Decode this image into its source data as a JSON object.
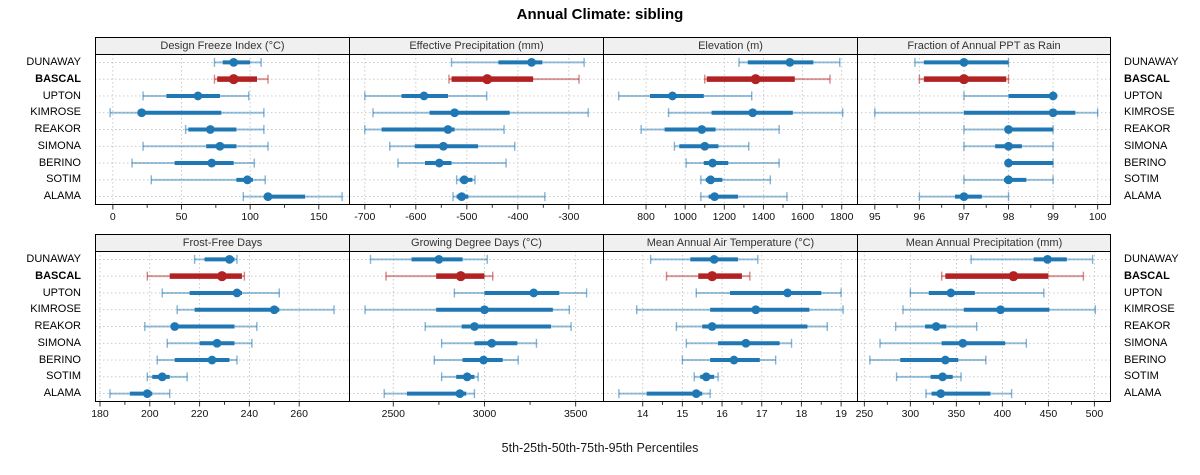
{
  "title": "Annual Climate: sibling",
  "footer_label": "5th-25th-50th-75th-95th Percentiles",
  "highlight_site": "BASCAL",
  "colors": {
    "series": "#1f77b4",
    "highlight": "#b22222",
    "panel_header_bg": "#f0f0f0",
    "panel_border": "#000000",
    "grid": "#c4c4c4",
    "tick": "#333333",
    "text": "#1a1a1a"
  },
  "chart_data": {
    "type": "dot-interval trellis (5th-25th-50th-75th-95th percentile plot)",
    "rows": [
      "DUNAWAY",
      "BASCAL",
      "UPTON",
      "KIMROSE",
      "REAKOR",
      "SIMONA",
      "BERINO",
      "SOTIM",
      "ALAMA"
    ],
    "percentiles": [
      "5th",
      "25th",
      "50th",
      "75th",
      "95th"
    ],
    "grid": "dotted",
    "panels": [
      {
        "title": "Design Freeze Index (°C)",
        "side": "top",
        "xlim": [
          -13,
          172
        ],
        "ticks": [
          0,
          50,
          100,
          150
        ],
        "series": {
          "DUNAWAY": [
            74,
            80,
            88,
            100,
            108
          ],
          "BASCAL": [
            74,
            76,
            88,
            105,
            113
          ],
          "UPTON": [
            22,
            39,
            62,
            78,
            99
          ],
          "KIMROSE": [
            -2,
            18,
            21,
            79,
            110
          ],
          "REAKOR": [
            53,
            55,
            71,
            90,
            110
          ],
          "SIMONA": [
            22,
            68,
            78,
            90,
            113
          ],
          "BERINO": [
            14,
            45,
            72,
            88,
            103
          ],
          "SOTIM": [
            28,
            90,
            98,
            102,
            111
          ],
          "ALAMA": [
            95,
            110,
            113,
            140,
            167
          ]
        }
      },
      {
        "title": "Effective Precipitation (mm)",
        "side": "top",
        "xlim": [
          -731,
          -233
        ],
        "ticks": [
          -700,
          -600,
          -500,
          -400,
          -300
        ],
        "series": {
          "DUNAWAY": [
            -530,
            -438,
            -373,
            -352,
            -270
          ],
          "BASCAL": [
            -535,
            -530,
            -460,
            -370,
            -280
          ],
          "UPTON": [
            -700,
            -628,
            -584,
            -537,
            -461
          ],
          "KIMROSE": [
            -684,
            -573,
            -524,
            -416,
            -262
          ],
          "REAKOR": [
            -700,
            -667,
            -537,
            -524,
            -427
          ],
          "SIMONA": [
            -651,
            -602,
            -546,
            -478,
            -406
          ],
          "BERINO": [
            -635,
            -582,
            -554,
            -530,
            -423
          ],
          "SOTIM": [
            -520,
            -514,
            -505,
            -489,
            -484
          ],
          "ALAMA": [
            -527,
            -520,
            -510,
            -497,
            -347
          ]
        }
      },
      {
        "title": "Elevation (m)",
        "side": "top",
        "xlim": [
          580,
          1878
        ],
        "ticks": [
          800,
          1000,
          1200,
          1400,
          1600,
          1800
        ],
        "series": {
          "DUNAWAY": [
            1275,
            1320,
            1535,
            1655,
            1790
          ],
          "BASCAL": [
            1100,
            1110,
            1360,
            1560,
            1740
          ],
          "UPTON": [
            660,
            820,
            935,
            1095,
            1340
          ],
          "KIMROSE": [
            915,
            1135,
            1345,
            1550,
            1805
          ],
          "REAKOR": [
            775,
            895,
            1085,
            1155,
            1480
          ],
          "SIMONA": [
            945,
            970,
            1100,
            1170,
            1325
          ],
          "BERINO": [
            1005,
            1095,
            1140,
            1220,
            1480
          ],
          "SOTIM": [
            1080,
            1105,
            1130,
            1190,
            1435
          ],
          "ALAMA": [
            1080,
            1120,
            1150,
            1270,
            1520
          ]
        }
      },
      {
        "title": "Fraction of Annual PPT as Rain",
        "side": "top",
        "xlim": [
          94.6,
          100.3
        ],
        "ticks": [
          95,
          96,
          97,
          98,
          99,
          100
        ],
        "series": {
          "DUNAWAY": [
            95.9,
            96.1,
            97,
            98,
            98
          ],
          "BASCAL": [
            96,
            96.1,
            97,
            97.95,
            98
          ],
          "UPTON": [
            97,
            98,
            99,
            99,
            99
          ],
          "KIMROSE": [
            95,
            97,
            99,
            99.5,
            100
          ],
          "REAKOR": [
            97,
            98,
            98,
            99,
            99
          ],
          "SIMONA": [
            97,
            97.7,
            98,
            98.3,
            99
          ],
          "BERINO": [
            98,
            98,
            98,
            99,
            99
          ],
          "SOTIM": [
            97,
            97.9,
            98,
            98.4,
            99
          ],
          "ALAMA": [
            96,
            96.8,
            97,
            97.4,
            98
          ]
        }
      },
      {
        "title": "Frost-Free Days",
        "side": "bottom",
        "xlim": [
          178,
          280
        ],
        "ticks": [
          180,
          200,
          220,
          240,
          260
        ],
        "series": {
          "DUNAWAY": [
            218,
            222,
            232,
            234,
            235
          ],
          "BASCAL": [
            199,
            208,
            229,
            237,
            238
          ],
          "UPTON": [
            205,
            216,
            235,
            237,
            252
          ],
          "KIMROSE": [
            211,
            218,
            250,
            252,
            274
          ],
          "REAKOR": [
            198,
            209,
            210,
            234,
            243
          ],
          "SIMONA": [
            207,
            220,
            227,
            234,
            241
          ],
          "BERINO": [
            203,
            210,
            225,
            232,
            235
          ],
          "SOTIM": [
            199,
            201,
            205,
            208,
            215
          ],
          "ALAMA": [
            184,
            192,
            199,
            201,
            208
          ]
        }
      },
      {
        "title": "Growing Degree Days (°C)",
        "side": "bottom",
        "xlim": [
          2257,
          3650
        ],
        "ticks": [
          2500,
          3000,
          3500
        ],
        "series": {
          "DUNAWAY": [
            2375,
            2600,
            2750,
            2880,
            3015
          ],
          "BASCAL": [
            2460,
            2735,
            2870,
            3000,
            3045
          ],
          "UPTON": [
            2835,
            3000,
            3270,
            3410,
            3560
          ],
          "KIMROSE": [
            2345,
            2735,
            3000,
            3375,
            3465
          ],
          "REAKOR": [
            2675,
            2875,
            2945,
            3365,
            3475
          ],
          "SIMONA": [
            2765,
            2945,
            3040,
            3180,
            3285
          ],
          "BERINO": [
            2725,
            2880,
            2995,
            3100,
            3185
          ],
          "SOTIM": [
            2765,
            2845,
            2905,
            2945,
            2965
          ],
          "ALAMA": [
            2450,
            2575,
            2865,
            2900,
            2945
          ]
        }
      },
      {
        "title": "Mean Annual Air Temperature (°C)",
        "side": "bottom",
        "xlim": [
          13.0,
          19.4
        ],
        "ticks": [
          14,
          15,
          16,
          17,
          18,
          19
        ],
        "series": {
          "DUNAWAY": [
            14.2,
            15.2,
            15.8,
            16.4,
            16.9
          ],
          "BASCAL": [
            14.6,
            15.4,
            15.75,
            16.5,
            16.7
          ],
          "UPTON": [
            15.35,
            16.2,
            17.65,
            18.5,
            19.0
          ],
          "KIMROSE": [
            13.85,
            15.7,
            16.85,
            18.2,
            19.05
          ],
          "REAKOR": [
            14.85,
            15.5,
            15.75,
            18.15,
            18.65
          ],
          "SIMONA": [
            15.1,
            15.9,
            16.6,
            17.45,
            17.75
          ],
          "BERINO": [
            15.0,
            15.7,
            16.3,
            16.95,
            17.35
          ],
          "SOTIM": [
            15.3,
            15.45,
            15.6,
            15.8,
            15.9
          ],
          "ALAMA": [
            13.4,
            14.1,
            15.35,
            15.5,
            15.7
          ]
        }
      },
      {
        "title": "Mean Annual Precipitation (mm)",
        "side": "bottom",
        "xlim": [
          242,
          518
        ],
        "ticks": [
          250,
          300,
          350,
          400,
          450,
          500
        ],
        "series": {
          "DUNAWAY": [
            366,
            434,
            449,
            470,
            498
          ],
          "BASCAL": [
            334,
            338,
            412,
            450,
            488
          ],
          "UPTON": [
            300,
            320,
            344,
            370,
            445
          ],
          "KIMROSE": [
            292,
            358,
            398,
            451,
            501
          ],
          "REAKOR": [
            284,
            316,
            328,
            339,
            372
          ],
          "SIMONA": [
            267,
            334,
            357,
            403,
            426
          ],
          "BERINO": [
            256,
            289,
            338,
            352,
            382
          ],
          "SOTIM": [
            285,
            322,
            335,
            346,
            355
          ],
          "ALAMA": [
            317,
            323,
            333,
            387,
            410
          ]
        }
      }
    ]
  }
}
